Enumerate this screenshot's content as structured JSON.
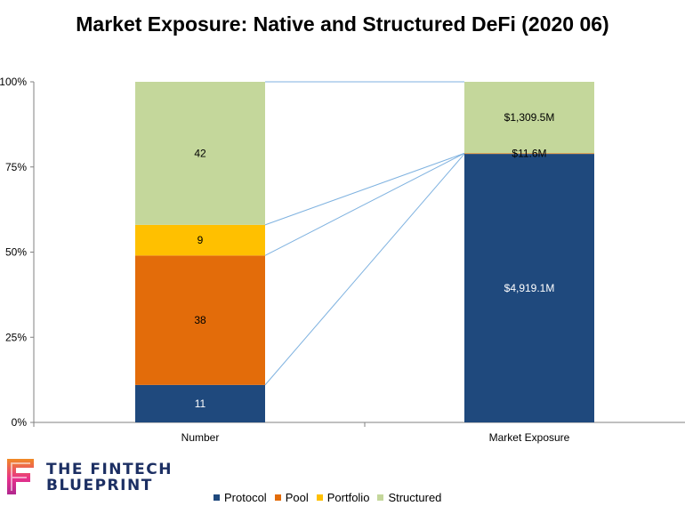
{
  "chart_data": {
    "type": "bar",
    "stacked": "percent",
    "title": "Market Exposure: Native and Structured DeFi (2020 06)",
    "categories": [
      "Number",
      "Market Exposure"
    ],
    "series": [
      {
        "name": "Protocol",
        "color": "#1f497d",
        "values": [
          11,
          4919.1
        ],
        "labels": [
          "11",
          "$4,919.1M"
        ]
      },
      {
        "name": "Pool",
        "color": "#e36c0a",
        "values": [
          38,
          11.6
        ],
        "labels": [
          "38",
          "$11.6M"
        ]
      },
      {
        "name": "Portfolio",
        "color": "#ffc000",
        "values": [
          9,
          0
        ],
        "labels": [
          "9",
          ""
        ]
      },
      {
        "name": "Structured",
        "color": "#c4d79b",
        "values": [
          42,
          1309.5
        ],
        "labels": [
          "42",
          "$1,309.5M"
        ]
      }
    ],
    "ylim": [
      0,
      100
    ],
    "yticks": [
      "0%",
      "25%",
      "50%",
      "75%",
      "100%"
    ],
    "legend_position": "bottom",
    "series_lines": true
  },
  "branding": {
    "logo_line1": "THE FINTECH",
    "logo_line2": "BLUEPRINT"
  }
}
